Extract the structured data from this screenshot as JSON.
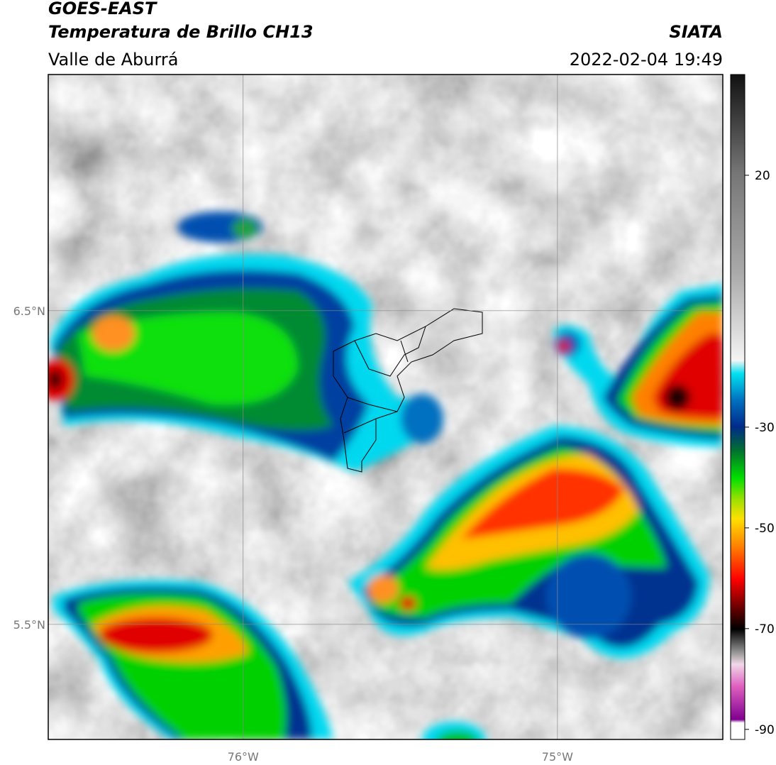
{
  "header": {
    "title": "GOES-EAST",
    "subtitle": "Temperatura de Brillo CH13",
    "region": "Valle de Aburrá",
    "source": "SIATA",
    "datetime": "2022-02-04 19:49"
  },
  "map": {
    "lon_range": [
      -76.62,
      -74.474
    ],
    "lat_range": [
      5.133,
      7.253
    ],
    "lat_ticks": [
      {
        "value": 6.5,
        "label": "6.5°N"
      },
      {
        "value": 5.5,
        "label": "5.5°N"
      }
    ],
    "lon_ticks": [
      {
        "value": -76,
        "label": "76°W"
      },
      {
        "value": -75,
        "label": "75°W"
      }
    ]
  },
  "colorbar": {
    "range": [
      -92,
      40
    ],
    "ticks": [
      20,
      -30,
      -50,
      -70,
      -90
    ]
  }
}
